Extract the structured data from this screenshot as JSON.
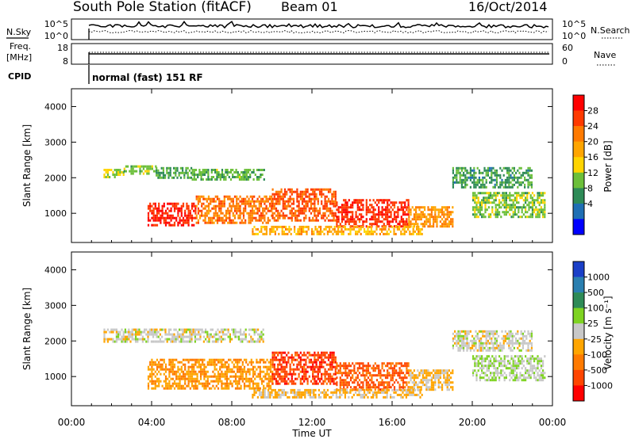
{
  "header": {
    "station": "South Pole Station (fitACF)",
    "beam": "Beam 01",
    "date": "16/Oct/2014"
  },
  "panels": {
    "nsky": {
      "label": "N.Sky",
      "right_label": "N.Search",
      "left_ticks": [
        "10^5",
        "10^0"
      ],
      "right_ticks": [
        "10^5",
        "10^0"
      ]
    },
    "freq": {
      "label_line1": "Freq.",
      "label_line2": "[MHz]",
      "right_label": "Nave",
      "left_ticks": [
        "18",
        "8"
      ],
      "right_ticks": [
        "60",
        "0"
      ]
    },
    "cpid": {
      "label": "CPID",
      "mode_text": "normal (fast) 151 RF"
    }
  },
  "power_colorbar": {
    "label": "Power [dB]",
    "ticks": [
      "28",
      "24",
      "20",
      "16",
      "12",
      "8",
      "4"
    ],
    "colors": [
      "#ff0000",
      "#ff3a00",
      "#ff7a00",
      "#ffa500",
      "#ffd400",
      "#6cbf3a",
      "#2e8b57",
      "#1f6fb4",
      "#0000ff"
    ]
  },
  "velocity_colorbar": {
    "label": "Velocity [m s⁻¹]",
    "ticks": [
      "1000",
      "500",
      "100",
      "25",
      "-25",
      "-100",
      "-500",
      "-1000"
    ],
    "colors": [
      "#1a3fc7",
      "#2a7fb0",
      "#2e8b57",
      "#7ed321",
      "#c8c8c8",
      "#ffa500",
      "#ff7a00",
      "#ff4500",
      "#ff0000"
    ]
  },
  "chart_data": [
    {
      "type": "heatmap",
      "title": "",
      "xlabel": "Time UT",
      "ylabel": "Slant Range [km]",
      "x_ticks": [
        "00:00",
        "04:00",
        "08:00",
        "12:00",
        "16:00",
        "20:00",
        "00:00"
      ],
      "y_ticks": [
        "1000",
        "2000",
        "3000",
        "4000"
      ],
      "xlim_hours": [
        0,
        24
      ],
      "ylim_km": [
        180,
        4500
      ],
      "quantity": "Power [dB]",
      "value_range": [
        0,
        30
      ],
      "echo_regions": [
        {
          "t_start": 1.6,
          "t_end": 2.6,
          "range_km": [
            2000,
            2250
          ],
          "value": 14
        },
        {
          "t_start": 2.6,
          "t_end": 4.2,
          "range_km": [
            2100,
            2350
          ],
          "value": 12
        },
        {
          "t_start": 4.2,
          "t_end": 6.0,
          "range_km": [
            2000,
            2300
          ],
          "value": 10
        },
        {
          "t_start": 6.0,
          "t_end": 9.6,
          "range_km": [
            1950,
            2250
          ],
          "value": 11
        },
        {
          "t_start": 3.8,
          "t_end": 6.2,
          "range_km": [
            650,
            1300
          ],
          "value": 27
        },
        {
          "t_start": 6.2,
          "t_end": 10.0,
          "range_km": [
            750,
            1500
          ],
          "value": 22
        },
        {
          "t_start": 10.0,
          "t_end": 13.2,
          "range_km": [
            800,
            1700
          ],
          "value": 24
        },
        {
          "t_start": 13.2,
          "t_end": 16.8,
          "range_km": [
            650,
            1400
          ],
          "value": 26
        },
        {
          "t_start": 16.8,
          "t_end": 19.0,
          "range_km": [
            600,
            1200
          ],
          "value": 20
        },
        {
          "t_start": 19.0,
          "t_end": 23.0,
          "range_km": [
            1700,
            2300
          ],
          "value": 9
        },
        {
          "t_start": 20.0,
          "t_end": 23.6,
          "range_km": [
            900,
            1600
          ],
          "value": 12
        },
        {
          "t_start": 9.0,
          "t_end": 17.5,
          "range_km": [
            420,
            650
          ],
          "value": 18
        }
      ]
    },
    {
      "type": "heatmap",
      "title": "",
      "xlabel": "Time UT",
      "ylabel": "Slant Range [km]",
      "x_ticks": [
        "00:00",
        "04:00",
        "08:00",
        "12:00",
        "16:00",
        "20:00",
        "00:00"
      ],
      "y_ticks": [
        "1000",
        "2000",
        "3000",
        "4000"
      ],
      "xlim_hours": [
        0,
        24
      ],
      "ylim_km": [
        180,
        4500
      ],
      "quantity": "Velocity [m s⁻¹]",
      "value_range": [
        -1000,
        1000
      ],
      "echo_regions": [
        {
          "t_start": 1.6,
          "t_end": 9.6,
          "range_km": [
            2000,
            2350
          ],
          "value": 0
        },
        {
          "t_start": 3.8,
          "t_end": 10.0,
          "range_km": [
            650,
            1500
          ],
          "value": -300
        },
        {
          "t_start": 10.0,
          "t_end": 13.2,
          "range_km": [
            800,
            1700
          ],
          "value": -700
        },
        {
          "t_start": 13.2,
          "t_end": 16.8,
          "range_km": [
            650,
            1400
          ],
          "value": -600
        },
        {
          "t_start": 16.8,
          "t_end": 19.0,
          "range_km": [
            600,
            1200
          ],
          "value": -150
        },
        {
          "t_start": 19.0,
          "t_end": 23.0,
          "range_km": [
            1700,
            2300
          ],
          "value": 0
        },
        {
          "t_start": 20.0,
          "t_end": 23.6,
          "range_km": [
            900,
            1600
          ],
          "value": 80
        },
        {
          "t_start": 9.0,
          "t_end": 17.5,
          "range_km": [
            420,
            650
          ],
          "value": -150
        }
      ]
    }
  ]
}
